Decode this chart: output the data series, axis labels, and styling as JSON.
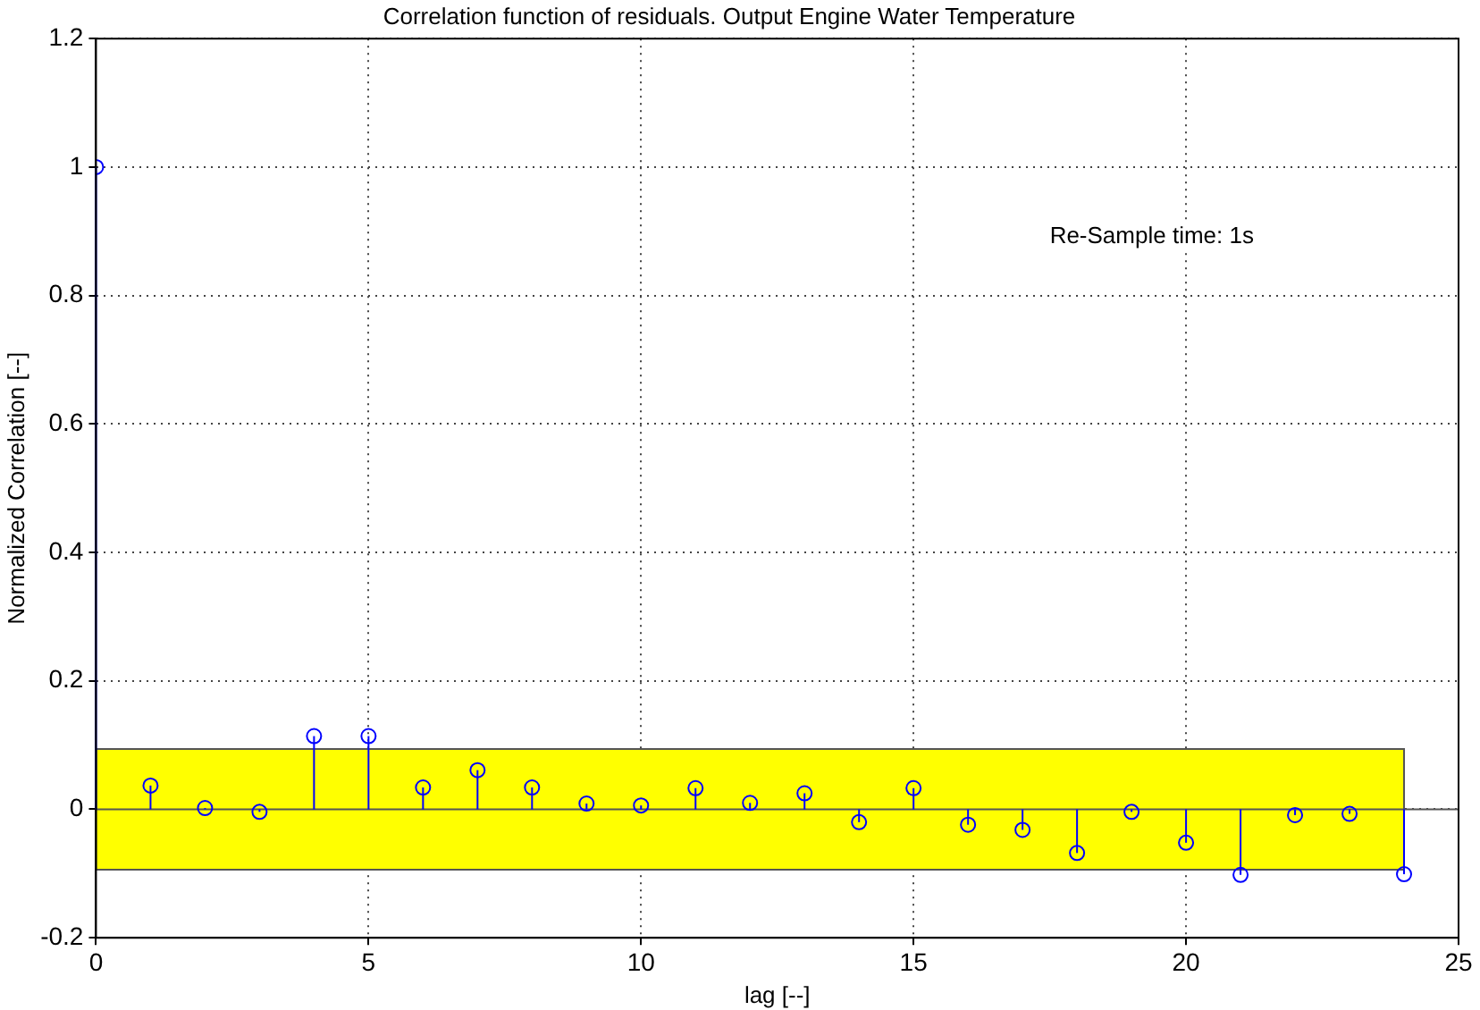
{
  "chart_data": {
    "type": "lollipop",
    "title": "Correlation function of residuals. Output Engine Water Temperature",
    "xlabel": "lag [--]",
    "ylabel": "Normalized Correlation [--]",
    "x": [
      0,
      1,
      2,
      3,
      4,
      5,
      6,
      7,
      8,
      9,
      10,
      11,
      12,
      13,
      14,
      15,
      16,
      17,
      18,
      19,
      20,
      21,
      22,
      23,
      24
    ],
    "values": [
      1,
      0.037,
      0.002,
      -0.004,
      0.114,
      0.114,
      0.034,
      0.061,
      0.034,
      0.009,
      0.006,
      0.033,
      0.01,
      0.025,
      -0.02,
      0.033,
      -0.024,
      -0.032,
      -0.068,
      -0.004,
      -0.052,
      -0.102,
      -0.009,
      -0.007,
      -0.101
    ],
    "color": "#0000ff",
    "marker": "circle",
    "grid": true,
    "xlim": [
      0,
      25
    ],
    "xticks": [
      0,
      5,
      10,
      15,
      20,
      25
    ],
    "ylim": [
      -0.2,
      1.2
    ],
    "yticks": [
      -0.2,
      0,
      0.2,
      0.4,
      0.6,
      0.8,
      1,
      1.2
    ],
    "bands": [
      {
        "axis": "y",
        "from": -0.094,
        "to": 0.094,
        "color": "#ffff00"
      }
    ],
    "annotations": [
      "Re-Sample time: 1s"
    ]
  }
}
